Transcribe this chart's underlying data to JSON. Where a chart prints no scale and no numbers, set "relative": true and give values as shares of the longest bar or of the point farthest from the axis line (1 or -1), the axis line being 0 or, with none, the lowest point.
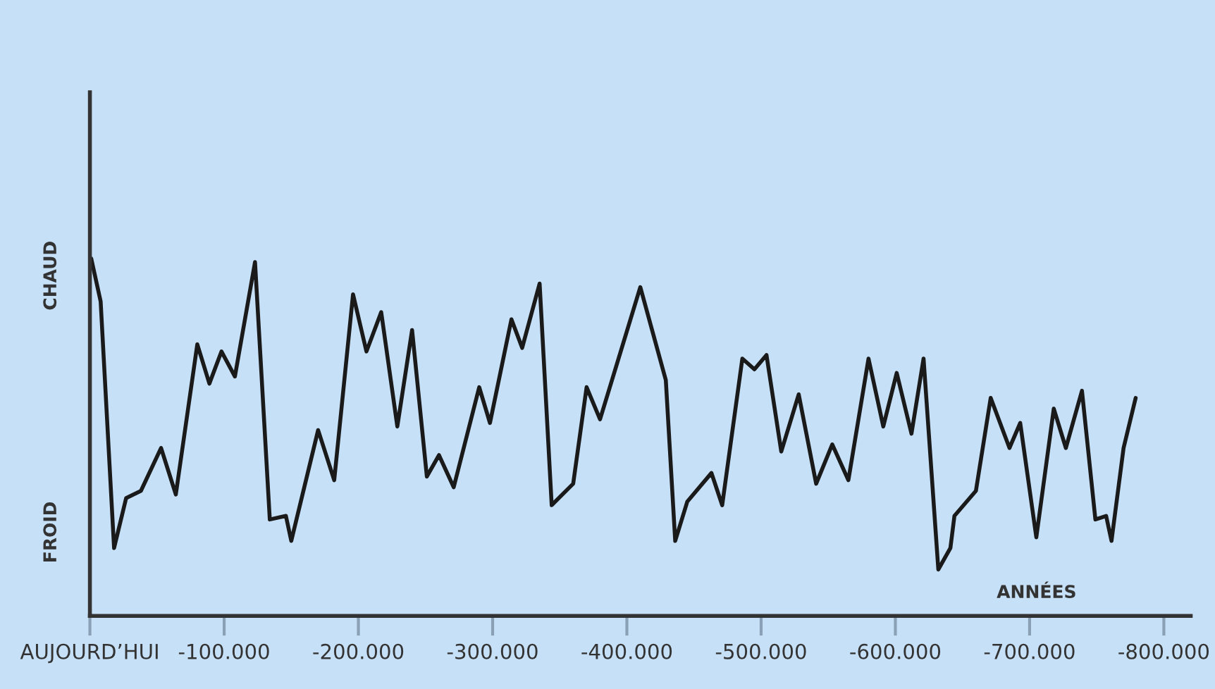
{
  "chart_data": {
    "type": "line",
    "relative": true,
    "xlabel": "ANNÉES",
    "annotations": [
      "CHAUD",
      "FROID"
    ],
    "x": [
      -1000,
      -8000,
      -18000,
      -27000,
      -38000,
      -53000,
      -64000,
      -80000,
      -89000,
      -98000,
      -108000,
      -123000,
      -134000,
      -146000,
      -150000,
      -170000,
      -182000,
      -196000,
      -206000,
      -217000,
      -229000,
      -240000,
      -251000,
      -260000,
      -271000,
      -290000,
      -298000,
      -314000,
      -322000,
      -335000,
      -344000,
      -360000,
      -370000,
      -380000,
      -410000,
      -429000,
      -436000,
      -445000,
      -463000,
      -471000,
      -486000,
      -495000,
      -504000,
      -515000,
      -528000,
      -541000,
      -553000,
      -565000,
      -580000,
      -591000,
      -601000,
      -612000,
      -621000,
      -632000,
      -641000,
      -644000,
      -660000,
      -671000,
      -685000,
      -693000,
      -705000,
      -718000,
      -727000,
      -739000,
      -749000,
      -757000,
      -761000,
      -770000,
      -779000
    ],
    "series": [
      {
        "color": "#1a1a1a",
        "values": [
          1.0,
          0.88,
          0.19,
          0.33,
          0.35,
          0.47,
          0.34,
          0.76,
          0.65,
          0.74,
          0.67,
          0.99,
          0.27,
          0.28,
          0.21,
          0.52,
          0.38,
          0.9,
          0.74,
          0.85,
          0.53,
          0.8,
          0.39,
          0.45,
          0.36,
          0.64,
          0.54,
          0.83,
          0.75,
          0.93,
          0.31,
          0.37,
          0.64,
          0.55,
          0.92,
          0.66,
          0.21,
          0.32,
          0.4,
          0.31,
          0.72,
          0.69,
          0.73,
          0.46,
          0.62,
          0.37,
          0.48,
          0.38,
          0.72,
          0.53,
          0.68,
          0.51,
          0.72,
          0.13,
          0.19,
          0.28,
          0.35,
          0.61,
          0.47,
          0.54,
          0.22,
          0.58,
          0.47,
          0.63,
          0.27,
          0.28,
          0.21,
          0.47,
          0.61
        ]
      }
    ],
    "xlim": [
      0,
      -820000
    ],
    "xticks": [
      {
        "value": 0,
        "label": "AUJOURD’HUI"
      },
      {
        "value": -100000,
        "label": "-100.000"
      },
      {
        "value": -200000,
        "label": "-200.000"
      },
      {
        "value": -300000,
        "label": "-300.000"
      },
      {
        "value": -400000,
        "label": "-400.000"
      },
      {
        "value": -500000,
        "label": "-500.000"
      },
      {
        "value": -600000,
        "label": "-600.000"
      },
      {
        "value": -700000,
        "label": "-700.000"
      },
      {
        "value": -800000,
        "label": "-800.000"
      }
    ],
    "grid": false,
    "legend": false,
    "marker": "none",
    "line_style": "solid"
  }
}
